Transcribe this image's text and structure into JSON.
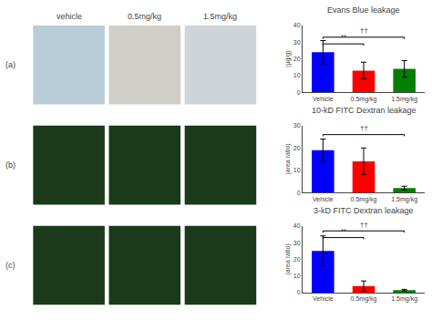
{
  "chart_data": [
    {
      "type": "panels",
      "categories": [
        "vehicle",
        "0.5mg/kg",
        "1.5mg/kg"
      ],
      "row_labels": [
        "(a)",
        "(b)",
        "(c)"
      ],
      "colors": [
        "#b8cdd8",
        "#d0cec8",
        "#cfd4d8",
        "#1a3a1a",
        "#1a3a1a",
        "#1a3a1a",
        "#1a3a1a",
        "#1a3a1a",
        "#1a3a1a"
      ],
      "tick_labels": false
    },
    {
      "type": "bar",
      "title": "Evans Blue leakage",
      "ylabel": "(µg/g)",
      "categories": [
        "Vehicle",
        "0.5mg/kg",
        "1.5mg/kg"
      ],
      "values": [
        24,
        13,
        14
      ],
      "errors": [
        7,
        5,
        5
      ],
      "colors": [
        "blue",
        "red",
        "green"
      ],
      "ylim": [
        0,
        40
      ],
      "yticks": [
        0,
        10,
        20,
        30,
        40
      ],
      "grid": false,
      "annotations": [
        {
          "from": "Vehicle",
          "to": "0.5mg/kg",
          "y": 29,
          "text": "**"
        },
        {
          "from": "Vehicle",
          "to": "1.5mg/kg",
          "y": 33,
          "text": "††"
        }
      ]
    },
    {
      "type": "bar",
      "title": "10-kD FITC Dextran leakage",
      "ylabel": "(area ratio)",
      "categories": [
        "Vehicle",
        "0.5mg/kg",
        "1.5mg/kg"
      ],
      "values": [
        19,
        14,
        2
      ],
      "errors": [
        5,
        6,
        0.8
      ],
      "colors": [
        "blue",
        "red",
        "green"
      ],
      "ylim": [
        0,
        30
      ],
      "yticks": [
        0,
        10,
        20,
        30
      ],
      "grid": false,
      "annotations": [
        {
          "from": "Vehicle",
          "to": "1.5mg/kg",
          "y": 26,
          "text": "††"
        }
      ]
    },
    {
      "type": "bar",
      "title": "3-kD FITC Dextran leakage",
      "ylabel": "(area ratio)",
      "categories": [
        "Vehicle",
        "0.5mg/kg",
        "1.5mg/kg"
      ],
      "values": [
        25,
        4,
        1.5
      ],
      "errors": [
        9,
        3,
        0.5
      ],
      "colors": [
        "blue",
        "red",
        "green"
      ],
      "ylim": [
        0,
        40
      ],
      "yticks": [
        0,
        10,
        20,
        30,
        40
      ],
      "grid": false,
      "annotations": [
        {
          "from": "Vehicle",
          "to": "0.5mg/kg",
          "y": 33,
          "text": "**"
        },
        {
          "from": "Vehicle",
          "to": "1.5mg/kg",
          "y": 37,
          "text": "††"
        }
      ]
    }
  ]
}
